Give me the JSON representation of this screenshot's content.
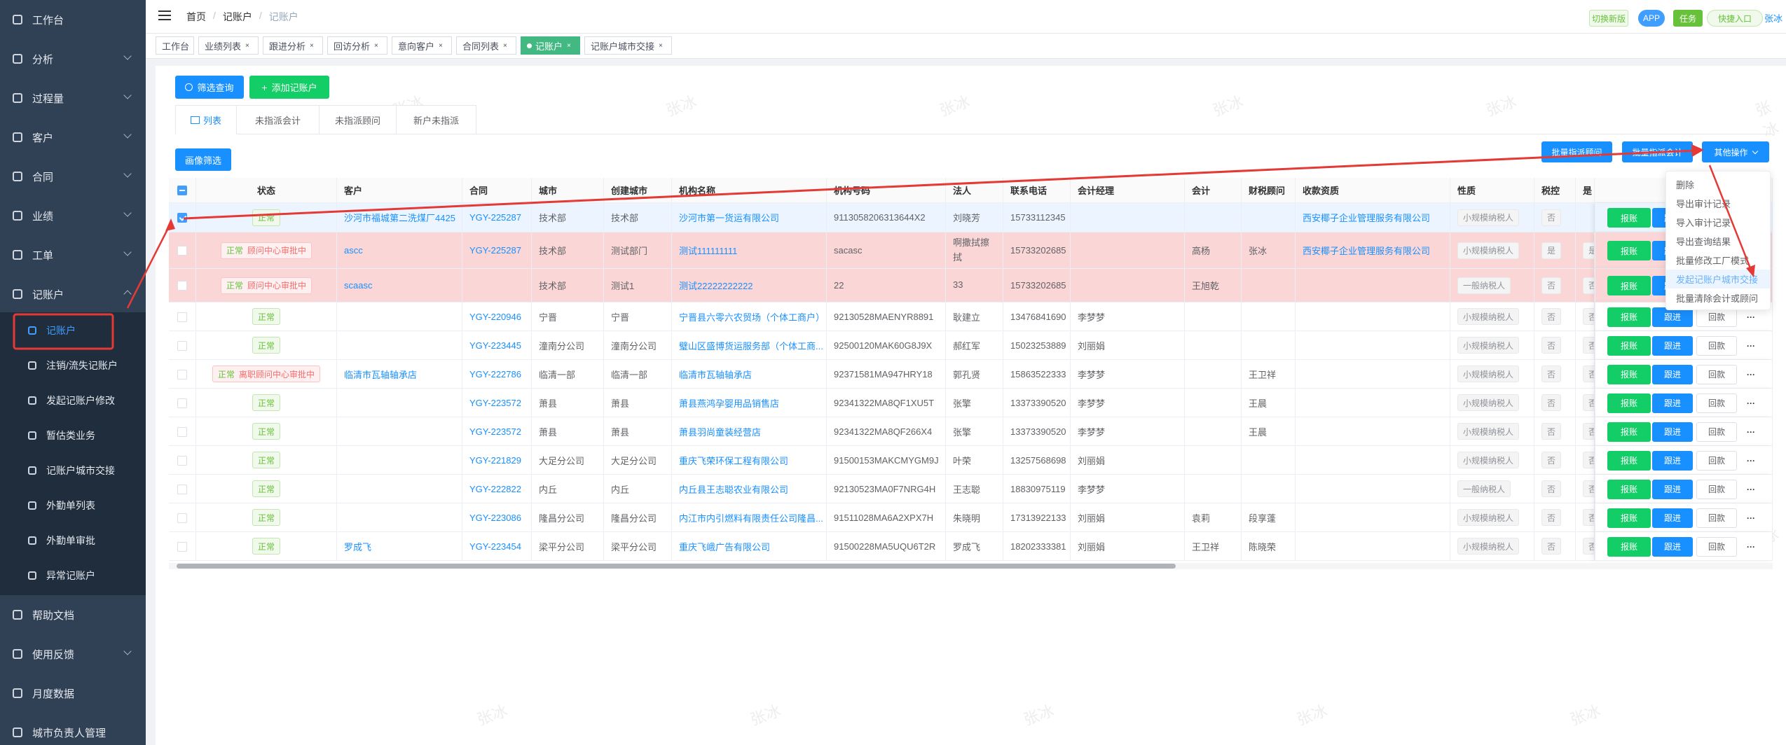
{
  "sidebar": {
    "items": [
      {
        "label": "工作台"
      },
      {
        "label": "分析",
        "expandable": true
      },
      {
        "label": "过程量",
        "expandable": true
      },
      {
        "label": "客户",
        "expandable": true
      },
      {
        "label": "合同",
        "expandable": true
      },
      {
        "label": "业绩",
        "expandable": true
      },
      {
        "label": "工单",
        "expandable": true
      },
      {
        "label": "记账户",
        "expandable": true,
        "children": [
          "记账户",
          "注销/流失记账户",
          "发起记账户修改",
          "暂估类业务",
          "记账户城市交接",
          "外勤单列表",
          "外勤单审批",
          "异常记账户"
        ]
      },
      {
        "label": "帮助文档"
      },
      {
        "label": "使用反馈",
        "expandable": true
      },
      {
        "label": "月度数据"
      },
      {
        "label": "城市负责人管理"
      }
    ]
  },
  "header": {
    "breadcrumb": [
      "首页",
      "记账户",
      "记账户"
    ],
    "separator": "/",
    "actions": [
      "切换新版",
      "APP",
      "任务",
      "快捷入口"
    ],
    "user": "张冰"
  },
  "page_tags": [
    "工作台",
    "业绩列表",
    "跟进分析",
    "回访分析",
    "意向客户",
    "合同列表",
    "记账户",
    "记账户城市交接"
  ],
  "toolbar": {
    "search": "筛选查询",
    "add": "添加记账户",
    "tabs": [
      "列表",
      "未指派会计",
      "未指派顾问",
      "新户未指派"
    ],
    "portrait": "画像筛选",
    "batch": [
      "批量指派顾问",
      "批量指派会计",
      "其他操作"
    ]
  },
  "dropdown": [
    "删除",
    "导出审计记录",
    "导入审计记录",
    "导出查询结果",
    "批量修改工厂模式",
    "发起记账户城市交接",
    "批量清除会计或顾问"
  ],
  "table": {
    "headers": [
      "状态",
      "客户",
      "合同",
      "城市",
      "创建城市",
      "机构名称",
      "机构号码",
      "法人",
      "联系电话",
      "会计经理",
      "会计",
      "财税顾问",
      "收款资质",
      "性质",
      "税控",
      "是"
    ],
    "actions": [
      "报账",
      "跟进",
      "回款",
      "···"
    ],
    "rows": [
      {
        "highlight": "selected",
        "status": [
          "正常"
        ],
        "cells": [
          "沙河市福城第二洗煤厂4425",
          "YGY-225287",
          "技术部",
          "技术部",
          "沙河市第一货运有限公司",
          "9113058206313644X2",
          "刘晓芳",
          "15733112345",
          null,
          null,
          null,
          "西安椰子企业管理服务有限公司",
          "小规模纳税人",
          "否",
          null
        ]
      },
      {
        "highlight": "pending",
        "status": [
          "正常",
          "顾问中心审批中"
        ],
        "cells": [
          "ascc",
          "YGY-225287",
          "技术部",
          "测试部门",
          "测试111111111",
          "sacasc",
          "啊撒拭擦拭",
          "15733202685",
          null,
          "高杨",
          "张冰",
          "西安椰子企业管理服务有限公司",
          "小规模纳税人",
          "是",
          "是"
        ]
      },
      {
        "highlight": "pending",
        "status": [
          "正常",
          "顾问中心审批中"
        ],
        "cells": [
          "scaasc",
          null,
          "技术部",
          "测试1",
          "测试22222222222",
          "22",
          "33",
          "15733202685",
          null,
          "王旭乾",
          null,
          null,
          "一般纳税人",
          "否",
          "否"
        ]
      },
      {
        "status": [
          "正常"
        ],
        "cells": [
          null,
          "YGY-220946",
          "宁晋",
          "宁晋",
          "宁晋县六零六农贸场（个体工商户）",
          "92130528MAENYR8891",
          "耿建立",
          "13476841690",
          "李梦梦",
          null,
          null,
          null,
          "小规模纳税人",
          "否",
          "否"
        ]
      },
      {
        "status": [
          "正常"
        ],
        "cells": [
          null,
          "YGY-223445",
          "潼南分公司",
          "潼南分公司",
          "璧山区盛博货运服务部（个体工商...",
          "92500120MAK60G8J9X",
          "郝红军",
          "15023253889",
          "刘丽娟",
          null,
          null,
          null,
          "小规模纳税人",
          "否",
          "否"
        ]
      },
      {
        "status": [
          "正常",
          "离职顾问中心审批中"
        ],
        "cells": [
          "临清市瓦轴轴承店",
          "YGY-222786",
          "临清一部",
          "临清一部",
          "临清市瓦轴轴承店",
          "92371581MA947HRY18",
          "郭孔贤",
          "15863522333",
          "李梦梦",
          null,
          "王卫祥",
          null,
          "小规模纳税人",
          "否",
          "否"
        ]
      },
      {
        "status": [
          "正常"
        ],
        "cells": [
          null,
          "YGY-223572",
          "萧县",
          "萧县",
          "萧县燕鸿孕婴用品销售店",
          "92341322MA8QF1XU5T",
          "张擎",
          "13373390520",
          "李梦梦",
          null,
          "王晨",
          null,
          "小规模纳税人",
          "否",
          "否"
        ]
      },
      {
        "status": [
          "正常"
        ],
        "cells": [
          null,
          "YGY-223572",
          "萧县",
          "萧县",
          "萧县羽尚童装经营店",
          "92341322MA8QF266X4",
          "张擎",
          "13373390520",
          "李梦梦",
          null,
          "王晨",
          null,
          "小规模纳税人",
          "否",
          "否"
        ]
      },
      {
        "status": [
          "正常"
        ],
        "cells": [
          null,
          "YGY-221829",
          "大足分公司",
          "大足分公司",
          "重庆飞荣环保工程有限公司",
          "91500153MAKCMYGM9J",
          "叶荣",
          "13257568698",
          "刘丽娟",
          null,
          null,
          null,
          "小规模纳税人",
          "否",
          "否"
        ]
      },
      {
        "status": [
          "正常"
        ],
        "cells": [
          null,
          "YGY-222822",
          "内丘",
          "内丘",
          "内丘县王志聪农业有限公司",
          "92130523MA0F7NRG4H",
          "王志聪",
          "18830975119",
          "李梦梦",
          null,
          null,
          null,
          "一般纳税人",
          "否",
          "否"
        ]
      },
      {
        "status": [
          "正常"
        ],
        "cells": [
          null,
          "YGY-223086",
          "隆昌分公司",
          "隆昌分公司",
          "内江市内引燃料有限责任公司隆昌...",
          "91511028MA6A2XPX7H",
          "朱晓明",
          "17313922133",
          "刘丽娟",
          "袁莉",
          "段享蓬",
          null,
          "小规模纳税人",
          "否",
          "否"
        ]
      },
      {
        "status": [
          "正常"
        ],
        "cells": [
          "罗成飞",
          "YGY-223454",
          "梁平分公司",
          "梁平分公司",
          "重庆飞峨广告有限公司",
          "91500228MA5UQU6T2R",
          "罗成飞",
          "18202333381",
          "刘丽娟",
          "王卫祥",
          "陈晓荣",
          null,
          "小规模纳税人",
          "否",
          "否"
        ]
      }
    ]
  },
  "watermark": "张冰"
}
